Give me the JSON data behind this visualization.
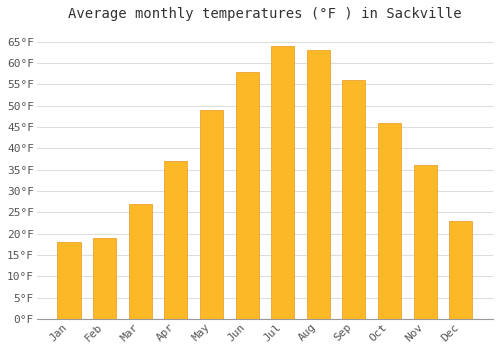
{
  "title": "Average monthly temperatures (°F ) in Sackville",
  "months": [
    "Jan",
    "Feb",
    "Mar",
    "Apr",
    "May",
    "Jun",
    "Jul",
    "Aug",
    "Sep",
    "Oct",
    "Nov",
    "Dec"
  ],
  "values": [
    18,
    19,
    27,
    37,
    49,
    58,
    64,
    63,
    56,
    46,
    36,
    23
  ],
  "bar_color": "#FDB827",
  "bar_edge_color": "#E8971A",
  "ylim": [
    0,
    68
  ],
  "yticks": [
    0,
    5,
    10,
    15,
    20,
    25,
    30,
    35,
    40,
    45,
    50,
    55,
    60,
    65
  ],
  "background_color": "#ffffff",
  "plot_bg_color": "#ffffff",
  "grid_color": "#dddddd",
  "title_fontsize": 10,
  "tick_fontsize": 8,
  "font_family": "monospace"
}
